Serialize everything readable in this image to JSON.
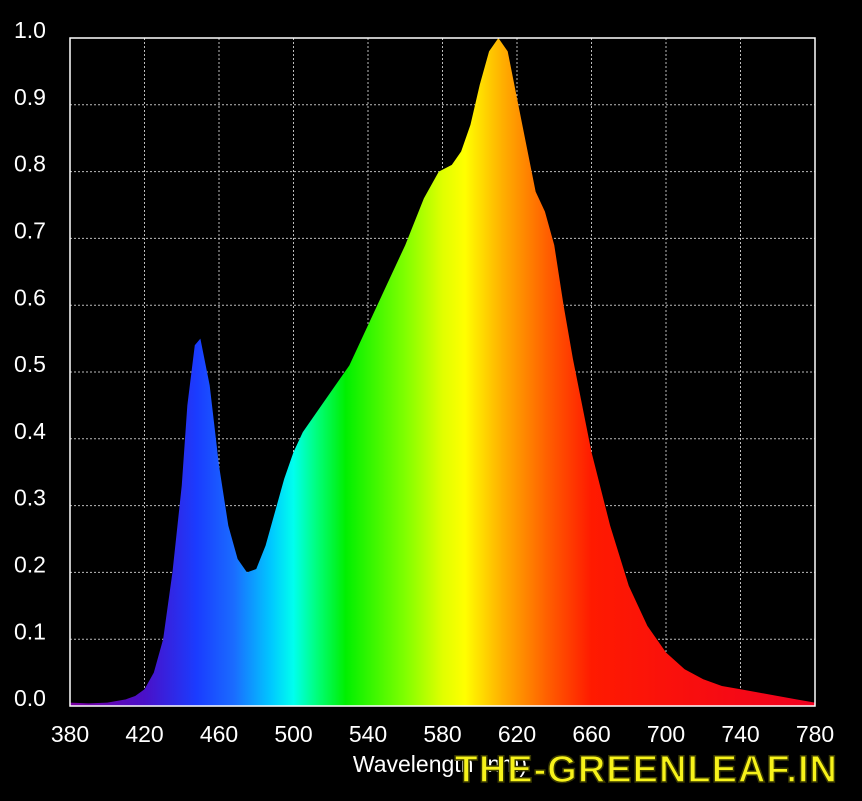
{
  "chart_data": {
    "type": "area",
    "x_label": "Wavelength (nm)",
    "watermark": "THE-GREENLEAF.IN",
    "x": [
      380,
      390,
      400,
      410,
      415,
      420,
      425,
      430,
      435,
      440,
      443,
      447,
      450,
      455,
      460,
      465,
      470,
      475,
      480,
      485,
      490,
      495,
      500,
      505,
      510,
      520,
      530,
      540,
      550,
      560,
      570,
      578,
      585,
      590,
      595,
      600,
      605,
      610,
      615,
      620,
      625,
      630,
      635,
      640,
      645,
      650,
      660,
      670,
      680,
      690,
      700,
      710,
      720,
      730,
      740,
      750,
      760,
      770,
      780
    ],
    "values": [
      0.005,
      0.004,
      0.005,
      0.01,
      0.015,
      0.025,
      0.05,
      0.1,
      0.2,
      0.33,
      0.45,
      0.54,
      0.55,
      0.48,
      0.36,
      0.27,
      0.22,
      0.2,
      0.205,
      0.24,
      0.29,
      0.34,
      0.38,
      0.41,
      0.43,
      0.47,
      0.51,
      0.57,
      0.63,
      0.69,
      0.76,
      0.8,
      0.81,
      0.83,
      0.87,
      0.93,
      0.98,
      1.0,
      0.98,
      0.91,
      0.84,
      0.77,
      0.74,
      0.69,
      0.6,
      0.52,
      0.38,
      0.27,
      0.18,
      0.12,
      0.08,
      0.055,
      0.04,
      0.03,
      0.025,
      0.02,
      0.015,
      0.01,
      0.005
    ],
    "xlim": [
      380,
      780
    ],
    "ylim": [
      0,
      1
    ],
    "xticks": [
      380,
      420,
      460,
      500,
      540,
      580,
      620,
      660,
      700,
      740,
      780
    ],
    "yticks": [
      {
        "value": 0,
        "label": "0.0"
      },
      0.1,
      0.2,
      0.3,
      0.4,
      0.5,
      0.6,
      0.7,
      0.8,
      0.9,
      {
        "value": 1,
        "label": "1.0"
      }
    ],
    "grid": true,
    "color": "spectrum"
  }
}
